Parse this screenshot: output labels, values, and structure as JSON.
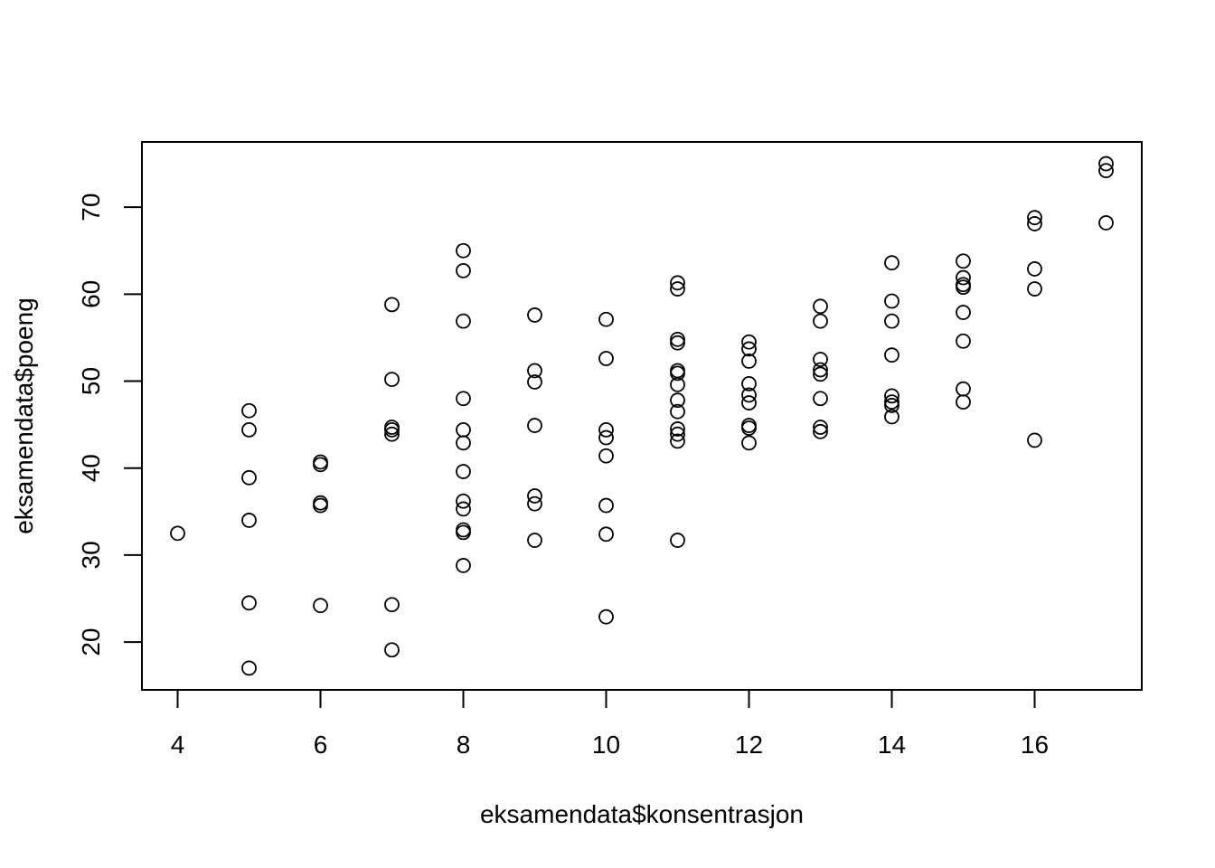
{
  "chart_data": {
    "type": "scatter",
    "title": "",
    "xlabel": "eksamendata$konsentrasjon",
    "ylabel": "eksamendata$poeng",
    "xlim": [
      3.5,
      17.5
    ],
    "ylim": [
      14.5,
      77.5
    ],
    "xticks": [
      4,
      6,
      8,
      10,
      12,
      14,
      16
    ],
    "yticks": [
      20,
      30,
      40,
      50,
      60,
      70
    ],
    "grid": false,
    "legend": "none",
    "point_color": "#000000",
    "points": [
      [
        4,
        32.5
      ],
      [
        5,
        46.6
      ],
      [
        5,
        44.4
      ],
      [
        5,
        38.9
      ],
      [
        5,
        34.0
      ],
      [
        5,
        24.5
      ],
      [
        5,
        17.0
      ],
      [
        6,
        40.7
      ],
      [
        6,
        40.4
      ],
      [
        6,
        36.0
      ],
      [
        6,
        35.7
      ],
      [
        6,
        24.2
      ],
      [
        7,
        58.8
      ],
      [
        7,
        50.2
      ],
      [
        7,
        44.7
      ],
      [
        7,
        44.4
      ],
      [
        7,
        43.9
      ],
      [
        7,
        24.3
      ],
      [
        7,
        19.1
      ],
      [
        8,
        65.0
      ],
      [
        8,
        62.7
      ],
      [
        8,
        56.9
      ],
      [
        8,
        48.0
      ],
      [
        8,
        44.4
      ],
      [
        8,
        42.9
      ],
      [
        8,
        39.6
      ],
      [
        8,
        36.2
      ],
      [
        8,
        35.3
      ],
      [
        8,
        32.9
      ],
      [
        8,
        32.6
      ],
      [
        8,
        28.8
      ],
      [
        9,
        57.6
      ],
      [
        9,
        51.2
      ],
      [
        9,
        49.9
      ],
      [
        9,
        44.9
      ],
      [
        9,
        36.8
      ],
      [
        9,
        35.9
      ],
      [
        9,
        31.7
      ],
      [
        10,
        57.1
      ],
      [
        10,
        52.6
      ],
      [
        10,
        44.4
      ],
      [
        10,
        43.5
      ],
      [
        10,
        41.4
      ],
      [
        10,
        35.7
      ],
      [
        10,
        32.4
      ],
      [
        10,
        22.9
      ],
      [
        11,
        61.3
      ],
      [
        11,
        60.6
      ],
      [
        11,
        54.8
      ],
      [
        11,
        54.4
      ],
      [
        11,
        51.2
      ],
      [
        11,
        50.9
      ],
      [
        11,
        49.6
      ],
      [
        11,
        47.8
      ],
      [
        11,
        46.5
      ],
      [
        11,
        44.5
      ],
      [
        11,
        43.9
      ],
      [
        11,
        43.1
      ],
      [
        11,
        31.7
      ],
      [
        12,
        54.5
      ],
      [
        12,
        53.7
      ],
      [
        12,
        52.3
      ],
      [
        12,
        49.7
      ],
      [
        12,
        48.4
      ],
      [
        12,
        47.5
      ],
      [
        12,
        44.9
      ],
      [
        12,
        44.6
      ],
      [
        12,
        42.9
      ],
      [
        13,
        58.6
      ],
      [
        13,
        56.9
      ],
      [
        13,
        52.5
      ],
      [
        13,
        51.3
      ],
      [
        13,
        50.8
      ],
      [
        13,
        48.0
      ],
      [
        13,
        44.7
      ],
      [
        13,
        44.2
      ],
      [
        14,
        63.6
      ],
      [
        14,
        59.2
      ],
      [
        14,
        56.9
      ],
      [
        14,
        53.0
      ],
      [
        14,
        48.3
      ],
      [
        14,
        47.6
      ],
      [
        14,
        47.2
      ],
      [
        14,
        45.9
      ],
      [
        15,
        63.8
      ],
      [
        15,
        61.9
      ],
      [
        15,
        61.1
      ],
      [
        15,
        60.8
      ],
      [
        15,
        57.9
      ],
      [
        15,
        54.6
      ],
      [
        15,
        49.1
      ],
      [
        15,
        47.6
      ],
      [
        16,
        68.8
      ],
      [
        16,
        68.1
      ],
      [
        16,
        62.9
      ],
      [
        16,
        60.6
      ],
      [
        16,
        43.2
      ],
      [
        17,
        75.0
      ],
      [
        17,
        74.2
      ],
      [
        17,
        68.2
      ]
    ]
  }
}
